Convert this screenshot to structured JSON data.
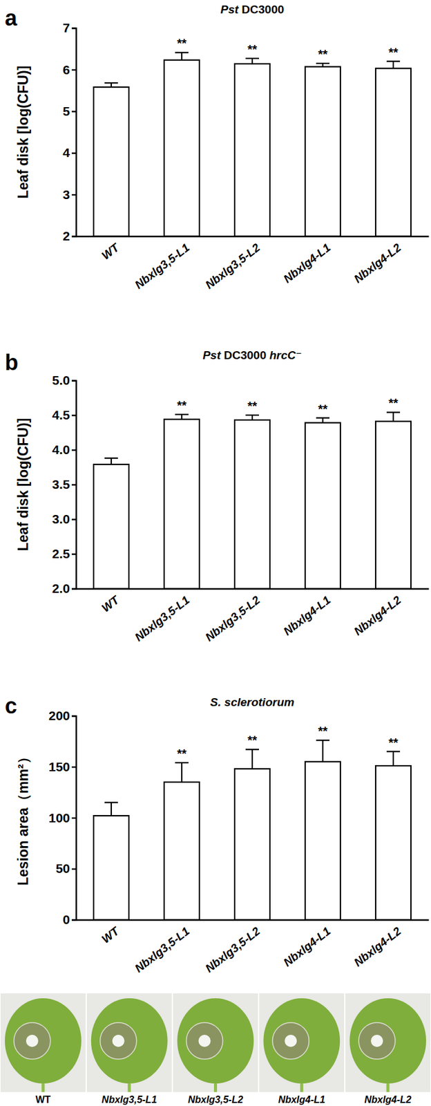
{
  "chart_data": [
    {
      "type": "bar",
      "panel_label": "a",
      "title": "Pst DC3000",
      "y_label": "Leaf disk [log(CFU)]",
      "categories": [
        "WT",
        "Nbxlg3,5-L1",
        "Nbxlg3,5-L2",
        "Nbxlg4-L1",
        "Nbxlg4-L2"
      ],
      "values": [
        5.58,
        6.23,
        6.14,
        6.07,
        6.03
      ],
      "errors": [
        0.1,
        0.18,
        0.13,
        0.08,
        0.17
      ],
      "significance": [
        null,
        "**",
        "**",
        "**",
        "**"
      ],
      "color": "#ffffff",
      "ylim": [
        2,
        7
      ],
      "yticks": [
        2,
        3,
        4,
        5,
        6,
        7
      ],
      "grid": false
    },
    {
      "type": "bar",
      "panel_label": "b",
      "title": "Pst DC3000 hrcC⁻",
      "y_label": "Leaf disk [log(CFU)]",
      "categories": [
        "WT",
        "Nbxlg3,5-L1",
        "Nbxlg3,5-L2",
        "Nbxlg4-L1",
        "Nbxlg4-L2"
      ],
      "values": [
        3.79,
        4.44,
        4.43,
        4.39,
        4.41
      ],
      "errors": [
        0.09,
        0.07,
        0.07,
        0.07,
        0.13
      ],
      "significance": [
        null,
        "**",
        "**",
        "**",
        "**"
      ],
      "color": "#ffffff",
      "ylim": [
        2,
        5
      ],
      "yticks": [
        {
          "value": 2,
          "label": "2.0"
        },
        {
          "value": 2.5,
          "label": "2.5"
        },
        {
          "value": 3,
          "label": "3.0"
        },
        {
          "value": 3.5,
          "label": "3.5"
        },
        {
          "value": 4,
          "label": "4.0"
        },
        {
          "value": 4.5,
          "label": "4.5"
        },
        {
          "value": 5,
          "label": "5.0"
        }
      ],
      "grid": false
    },
    {
      "type": "bar",
      "panel_label": "c",
      "title": "S. sclerotiorum",
      "y_label": "Lesion area（mm²）",
      "categories": [
        "WT",
        "Nbxlg3,5-L1",
        "Nbxlg3,5-L2",
        "Nbxlg4-L1",
        "Nbxlg4-L2"
      ],
      "values": [
        102,
        135,
        148,
        155,
        151
      ],
      "errors": [
        13,
        19,
        19,
        21,
        14
      ],
      "significance": [
        null,
        "**",
        "**",
        "**",
        "**"
      ],
      "color": "#ffffff",
      "ylim": [
        0,
        200
      ],
      "yticks": [
        0,
        50,
        100,
        150,
        200
      ],
      "grid": false
    }
  ],
  "image_panel": {
    "labels": [
      "WT",
      "Nbxlg3,5-L1",
      "Nbxlg3,5-L2",
      "Nbxlg4-L1",
      "Nbxlg4-L2"
    ]
  }
}
